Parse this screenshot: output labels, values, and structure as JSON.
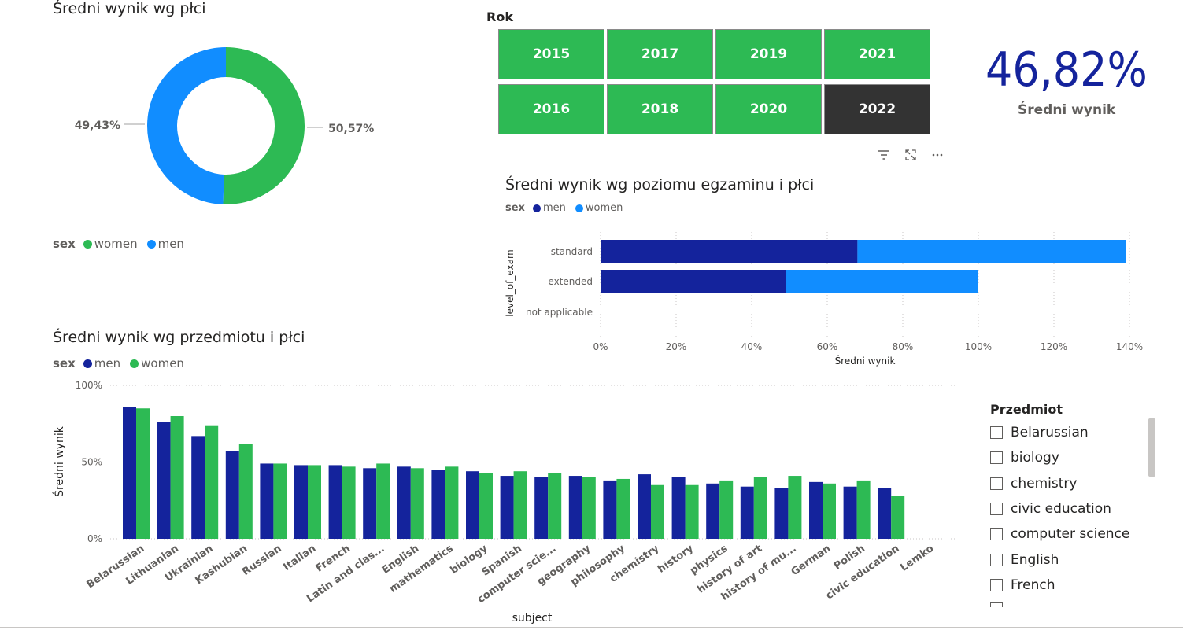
{
  "donut": {
    "title": "Średni wynik wg płci",
    "legend_title": "sex",
    "legend": [
      {
        "name": "women",
        "color": "#2dba54"
      },
      {
        "name": "men",
        "color": "#118dff"
      }
    ],
    "labels": {
      "women": "50,57%",
      "men": "49,43%"
    }
  },
  "year_slicer": {
    "title": "Rok",
    "years_row1": [
      "2015",
      "2017",
      "2019",
      "2021"
    ],
    "years_row2": [
      "2016",
      "2018",
      "2020",
      "2022"
    ],
    "selected": "2022"
  },
  "kpi": {
    "value": "46,82%",
    "label": "Średni wynik"
  },
  "level_chart": {
    "title": "Średni wynik wg poziomu egzaminu i płci",
    "legend_title": "sex",
    "legend": [
      {
        "name": "men",
        "color": "#14239c"
      },
      {
        "name": "women",
        "color": "#118dff"
      }
    ],
    "ylabel": "level_of_exam",
    "xlabel": "Średni wynik",
    "categories": [
      "standard",
      "extended",
      "not applicable"
    ],
    "x_ticks": [
      "0%",
      "20%",
      "40%",
      "60%",
      "80%",
      "100%",
      "120%",
      "140%"
    ]
  },
  "subject_chart": {
    "title": "Średni wynik wg przedmiotu i płci",
    "legend_title": "sex",
    "legend": [
      {
        "name": "men",
        "color": "#14239c"
      },
      {
        "name": "women",
        "color": "#2dba54"
      }
    ],
    "ylabel": "Średni wynik",
    "xlabel": "subject",
    "y_ticks": [
      "100%",
      "50%",
      "0%"
    ]
  },
  "subject_slicer": {
    "title": "Przedmiot",
    "items": [
      "Belarussian",
      "biology",
      "chemistry",
      "civic education",
      "computer science",
      "English",
      "French"
    ]
  },
  "chart_data": [
    {
      "type": "pie",
      "title": "Średni wynik wg płci",
      "categories": [
        "women",
        "men"
      ],
      "values": [
        50.57,
        49.43
      ]
    },
    {
      "type": "bar",
      "orientation": "horizontal",
      "stacked": true,
      "title": "Średni wynik wg poziomu egzaminu i płci",
      "categories": [
        "standard",
        "extended",
        "not applicable"
      ],
      "series": [
        {
          "name": "men",
          "values": [
            68,
            49,
            0
          ]
        },
        {
          "name": "women",
          "values": [
            71,
            51,
            0
          ]
        }
      ],
      "xlabel": "Średni wynik",
      "ylabel": "level_of_exam",
      "xlim": [
        0,
        140
      ]
    },
    {
      "type": "bar",
      "title": "Średni wynik wg przedmiotu i płci",
      "categories": [
        "Belarussian",
        "Lithuanian",
        "Ukrainian",
        "Kashubian",
        "Russian",
        "Italian",
        "French",
        "Latin and clas...",
        "English",
        "mathematics",
        "biology",
        "Spanish",
        "computer scie...",
        "geography",
        "philosophy",
        "chemistry",
        "history",
        "physics",
        "history of art",
        "history of mu...",
        "German",
        "Polish",
        "civic education",
        "Lemko"
      ],
      "series": [
        {
          "name": "men",
          "values": [
            86,
            76,
            67,
            57,
            49,
            48,
            48,
            46,
            47,
            45,
            44,
            41,
            40,
            41,
            38,
            42,
            40,
            36,
            34,
            33,
            37,
            34,
            33,
            0
          ]
        },
        {
          "name": "women",
          "values": [
            85,
            80,
            74,
            62,
            49,
            48,
            47,
            49,
            46,
            47,
            43,
            44,
            43,
            40,
            39,
            35,
            35,
            38,
            40,
            41,
            36,
            38,
            28,
            0
          ]
        }
      ],
      "xlabel": "subject",
      "ylabel": "Średni wynik",
      "ylim": [
        0,
        100
      ]
    }
  ]
}
